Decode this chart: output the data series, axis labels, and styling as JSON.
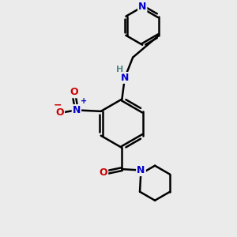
{
  "bg_color": "#ebebeb",
  "atom_colors": {
    "C": "#000000",
    "N": "#0000cc",
    "O": "#cc0000",
    "H": "#558888"
  },
  "bond_color": "#000000",
  "bond_width": 1.8,
  "dbo": 0.07,
  "figsize": [
    3.0,
    3.0
  ],
  "dpi": 100
}
